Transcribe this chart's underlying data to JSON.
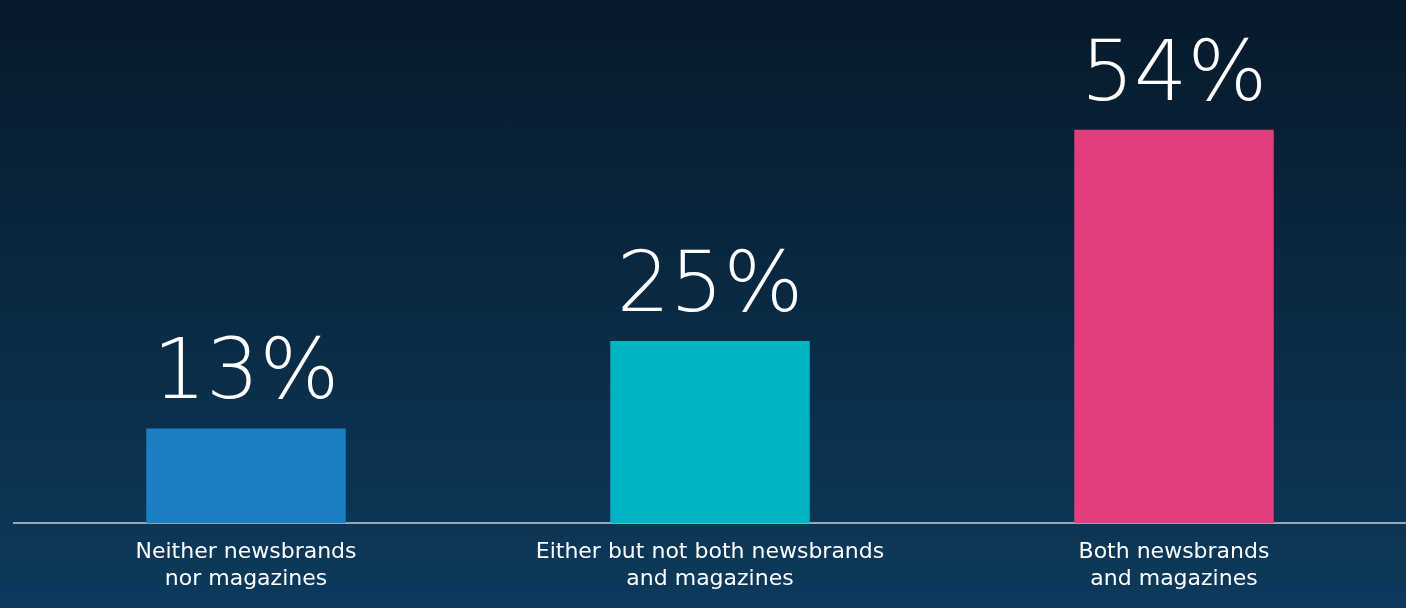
{
  "chart_data": {
    "type": "bar",
    "categories": [
      "Neither newsbrands\nnor magazines",
      "Either but not both newsbrands\nand magazines",
      "Both newsbrands\nand magazines"
    ],
    "values": [
      13,
      25,
      54
    ],
    "colors": [
      "#1a7fc4",
      "#00b5c3",
      "#e03e7c"
    ],
    "value_labels": [
      "13%",
      "25%",
      "54%"
    ]
  }
}
